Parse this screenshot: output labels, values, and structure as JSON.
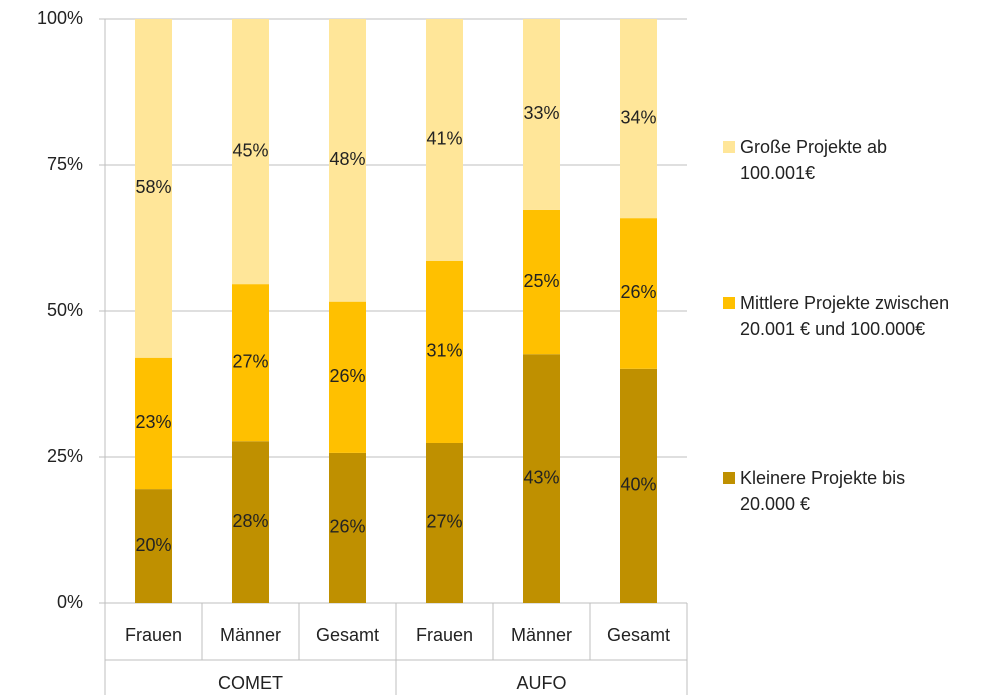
{
  "chart_data": {
    "type": "bar",
    "stacked": true,
    "categories": [
      "Frauen",
      "Männer",
      "Gesamt",
      "Frauen",
      "Männer",
      "Gesamt"
    ],
    "group_labels": [
      "COMET",
      "AUFO"
    ],
    "series": [
      {
        "name": "Kleinere Projekte bis 20.000 €",
        "color": "#BF9000",
        "values": [
          19.5,
          27.7,
          25.7,
          27.4,
          42.6,
          40.1
        ],
        "value_labels": [
          "20%",
          "28%",
          "26%",
          "27%",
          "43%",
          "40%"
        ]
      },
      {
        "name": "Mittlere Projekte zwischen 20.001 € und 100.000€",
        "color": "#FFC000",
        "values": [
          22.5,
          26.9,
          25.9,
          31.2,
          24.7,
          25.8
        ],
        "value_labels": [
          "23%",
          "27%",
          "26%",
          "31%",
          "25%",
          "26%"
        ]
      },
      {
        "name": "Große Projekte ab 100.001€",
        "color": "#FFE699",
        "values": [
          58,
          45.4,
          48.4,
          41.4,
          32.7,
          34.1
        ],
        "value_labels": [
          "58%",
          "45%",
          "48%",
          "41%",
          "33%",
          "34%"
        ]
      }
    ],
    "ylim": [
      0,
      100
    ],
    "yticks": [
      {
        "value": 0,
        "label": "0%"
      },
      {
        "value": 25,
        "label": "25%"
      },
      {
        "value": 50,
        "label": "50%"
      },
      {
        "value": 75,
        "label": "75%"
      },
      {
        "value": 100,
        "label": "100%"
      }
    ],
    "grid": true,
    "legend": "right"
  }
}
